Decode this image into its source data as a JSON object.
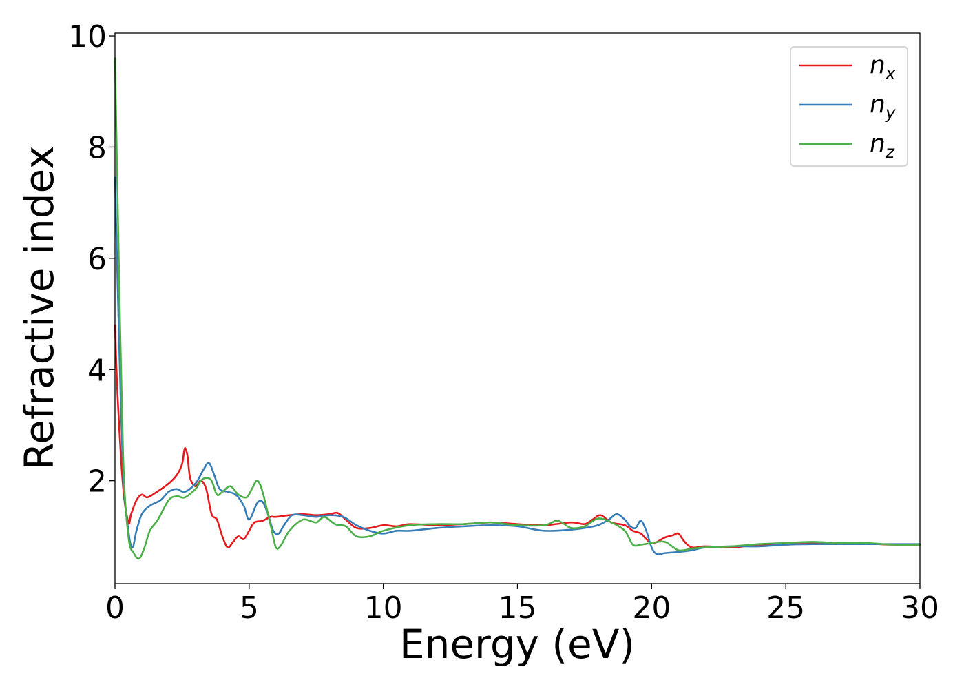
{
  "chart_data": {
    "type": "line",
    "title": "",
    "xlabel": "Energy (eV)",
    "ylabel": "Refractive index",
    "xlim": [
      0,
      30
    ],
    "ylim": [
      0.15,
      10.05
    ],
    "xticks": [
      0,
      5,
      10,
      15,
      20,
      25,
      30
    ],
    "xtick_labels": [
      "0",
      "5",
      "10",
      "15",
      "20",
      "25",
      "30"
    ],
    "yticks": [
      2,
      4,
      6,
      8,
      10
    ],
    "ytick_labels": [
      "2",
      "4",
      "6",
      "8",
      "10"
    ],
    "grid": false,
    "legend_position": "top-right",
    "series": [
      {
        "name": "n_x",
        "legend_main": "n",
        "legend_sub": "x",
        "color": "#e41a1c",
        "x": [
          0.0,
          0.1,
          0.3,
          0.5,
          0.6,
          0.8,
          1.0,
          1.2,
          1.5,
          2.0,
          2.3,
          2.5,
          2.6,
          2.7,
          2.8,
          3.0,
          3.2,
          3.4,
          3.6,
          3.8,
          4.0,
          4.2,
          4.4,
          4.6,
          4.8,
          5.0,
          5.2,
          5.5,
          5.8,
          6.0,
          6.5,
          7.0,
          7.5,
          8.0,
          8.3,
          8.6,
          9.0,
          9.5,
          10.0,
          10.5,
          11.0,
          12.0,
          13.0,
          14.0,
          15.0,
          16.0,
          17.0,
          17.5,
          17.8,
          18.1,
          18.5,
          19.0,
          19.3,
          19.6,
          19.8,
          20.0,
          20.2,
          20.5,
          20.8,
          21.0,
          21.2,
          21.5,
          22.0,
          23.0,
          24.0,
          25.0,
          26.0,
          27.0,
          28.0,
          29.0,
          30.0
        ],
        "values": [
          4.8,
          3.5,
          1.9,
          1.25,
          1.4,
          1.65,
          1.75,
          1.7,
          1.78,
          1.95,
          2.1,
          2.3,
          2.58,
          2.45,
          2.05,
          1.9,
          2.0,
          1.85,
          1.4,
          1.3,
          1.0,
          0.8,
          0.9,
          1.0,
          0.95,
          1.1,
          1.25,
          1.28,
          1.35,
          1.35,
          1.38,
          1.4,
          1.38,
          1.4,
          1.42,
          1.3,
          1.15,
          1.15,
          1.2,
          1.18,
          1.22,
          1.2,
          1.22,
          1.25,
          1.22,
          1.2,
          1.25,
          1.22,
          1.3,
          1.38,
          1.25,
          1.2,
          1.1,
          1.05,
          0.95,
          0.88,
          0.9,
          0.98,
          1.02,
          1.05,
          0.92,
          0.8,
          0.82,
          0.8,
          0.85,
          0.85,
          0.88,
          0.88,
          0.87,
          0.85,
          0.85
        ]
      },
      {
        "name": "n_y",
        "legend_main": "n",
        "legend_sub": "y",
        "color": "#377eb8",
        "x": [
          0.0,
          0.1,
          0.3,
          0.5,
          0.65,
          0.8,
          1.0,
          1.3,
          1.7,
          2.0,
          2.3,
          2.6,
          3.0,
          3.3,
          3.5,
          3.7,
          3.9,
          4.2,
          4.5,
          4.8,
          5.0,
          5.3,
          5.5,
          5.7,
          5.9,
          6.1,
          6.3,
          6.6,
          7.0,
          7.5,
          8.0,
          8.5,
          9.0,
          9.5,
          10.0,
          10.5,
          11.0,
          12.0,
          13.0,
          14.0,
          15.0,
          16.0,
          17.0,
          17.5,
          18.0,
          18.4,
          18.7,
          19.0,
          19.2,
          19.4,
          19.6,
          19.8,
          20.0,
          20.2,
          20.5,
          21.0,
          21.5,
          22.0,
          23.0,
          24.0,
          25.0,
          26.0,
          27.0,
          28.0,
          29.0,
          30.0
        ],
        "values": [
          7.45,
          5.5,
          2.2,
          1.1,
          0.8,
          1.1,
          1.4,
          1.55,
          1.65,
          1.8,
          1.85,
          1.8,
          1.95,
          2.2,
          2.32,
          2.1,
          1.85,
          1.8,
          1.75,
          1.55,
          1.3,
          1.6,
          1.62,
          1.4,
          1.1,
          1.05,
          1.2,
          1.38,
          1.38,
          1.35,
          1.38,
          1.35,
          1.2,
          1.1,
          1.05,
          1.1,
          1.1,
          1.15,
          1.18,
          1.2,
          1.18,
          1.1,
          1.12,
          1.15,
          1.2,
          1.3,
          1.4,
          1.3,
          1.18,
          1.15,
          1.28,
          1.1,
          0.8,
          0.68,
          0.7,
          0.72,
          0.75,
          0.8,
          0.82,
          0.82,
          0.85,
          0.86,
          0.86,
          0.86,
          0.86,
          0.86
        ]
      },
      {
        "name": "n_z",
        "legend_main": "n",
        "legend_sub": "z",
        "color": "#4daf4a",
        "x": [
          0.0,
          0.1,
          0.3,
          0.5,
          0.7,
          0.9,
          1.1,
          1.3,
          1.6,
          2.0,
          2.3,
          2.6,
          3.0,
          3.2,
          3.4,
          3.6,
          3.8,
          4.0,
          4.3,
          4.6,
          4.9,
          5.1,
          5.3,
          5.5,
          5.8,
          6.0,
          6.2,
          6.5,
          7.0,
          7.5,
          7.8,
          8.2,
          8.6,
          9.0,
          9.5,
          10.0,
          11.0,
          12.0,
          13.0,
          14.0,
          15.0,
          16.0,
          16.5,
          17.0,
          17.5,
          18.0,
          18.5,
          19.0,
          19.3,
          19.6,
          20.0,
          20.5,
          21.0,
          21.5,
          22.0,
          23.0,
          24.0,
          25.0,
          26.0,
          27.0,
          28.0,
          29.0,
          30.0
        ],
        "values": [
          9.6,
          7.0,
          2.5,
          1.0,
          0.7,
          0.6,
          0.8,
          1.1,
          1.3,
          1.65,
          1.72,
          1.7,
          1.85,
          2.0,
          2.05,
          2.0,
          1.75,
          1.8,
          1.9,
          1.75,
          1.7,
          1.85,
          2.0,
          1.8,
          1.2,
          0.8,
          0.85,
          1.1,
          1.3,
          1.25,
          1.35,
          1.22,
          1.18,
          1.0,
          1.0,
          1.1,
          1.2,
          1.22,
          1.22,
          1.25,
          1.2,
          1.2,
          1.28,
          1.15,
          1.18,
          1.32,
          1.25,
          1.1,
          0.85,
          0.85,
          0.88,
          0.9,
          0.75,
          0.78,
          0.8,
          0.82,
          0.86,
          0.88,
          0.9,
          0.88,
          0.88,
          0.85,
          0.85
        ]
      }
    ]
  }
}
